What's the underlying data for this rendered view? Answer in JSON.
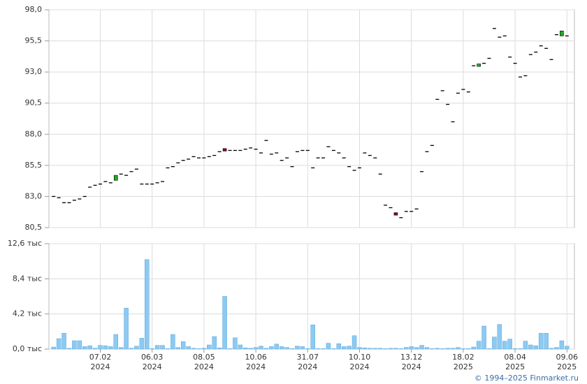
{
  "chart_data": [
    {
      "type": "candlestick",
      "open": [
        83.0,
        82.9,
        82.5,
        82.5,
        82.7,
        82.8,
        83.0,
        83.75,
        83.9,
        84.0,
        84.2,
        84.1,
        84.3,
        84.8,
        84.7,
        85.0,
        85.2,
        84.0,
        84.0,
        84.0,
        84.1,
        84.2,
        85.3,
        85.4,
        85.7,
        85.9,
        86.0,
        86.2,
        86.1,
        86.1,
        86.2,
        86.3,
        86.6,
        86.85,
        86.7,
        86.7,
        86.7,
        86.8,
        86.9,
        86.8,
        86.5,
        87.5,
        86.4,
        86.5,
        85.9,
        86.1,
        85.4,
        86.6,
        86.7,
        86.7,
        85.3,
        86.1,
        86.1,
        87.0,
        86.7,
        86.5,
        86.1,
        85.4,
        85.1,
        85.3,
        86.5,
        86.3,
        86.1,
        84.8,
        82.3,
        82.1,
        81.7,
        81.3,
        81.8,
        81.8,
        82.0,
        85.0,
        86.6,
        87.1,
        90.8,
        91.5,
        90.4,
        89.0,
        91.3,
        91.6,
        91.4,
        93.5,
        93.45,
        93.7,
        94.1,
        96.5,
        95.8,
        95.9,
        94.2,
        93.7,
        92.6,
        92.7,
        94.4,
        94.6,
        95.1,
        94.9,
        94.0,
        96.0,
        95.9,
        95.9
      ],
      "close": [
        83.0,
        82.9,
        82.5,
        82.5,
        82.7,
        82.8,
        83.0,
        83.75,
        83.9,
        84.0,
        84.2,
        84.1,
        84.7,
        84.8,
        84.7,
        85.0,
        85.2,
        84.0,
        84.0,
        84.0,
        84.1,
        84.2,
        85.3,
        85.4,
        85.7,
        85.9,
        86.0,
        86.2,
        86.1,
        86.1,
        86.2,
        86.3,
        86.6,
        86.65,
        86.7,
        86.7,
        86.7,
        86.8,
        86.9,
        86.8,
        86.5,
        87.5,
        86.4,
        86.5,
        85.9,
        86.1,
        85.4,
        86.6,
        86.7,
        86.7,
        85.3,
        86.1,
        86.1,
        87.0,
        86.7,
        86.5,
        86.1,
        85.4,
        85.1,
        85.3,
        86.5,
        86.3,
        86.1,
        84.8,
        82.3,
        82.1,
        81.5,
        81.3,
        81.8,
        81.8,
        82.0,
        85.0,
        86.6,
        87.1,
        90.8,
        91.5,
        90.4,
        89.0,
        91.3,
        91.6,
        91.4,
        93.5,
        93.65,
        93.7,
        94.1,
        96.5,
        95.8,
        95.9,
        94.2,
        93.7,
        92.6,
        92.7,
        94.4,
        94.6,
        95.1,
        94.9,
        94.0,
        96.0,
        96.3,
        95.9
      ],
      "up_color": "#22aa22",
      "down_color": "#880022",
      "flat_color": "#000000",
      "ylim": [
        80.5,
        98.0
      ],
      "yticks": [
        {
          "value": 80.5,
          "label": "80,5"
        },
        {
          "value": 83.0,
          "label": "83,0"
        },
        {
          "value": 85.5,
          "label": "85,5"
        },
        {
          "value": 88.0,
          "label": "88,0"
        },
        {
          "value": 90.5,
          "label": "90,5"
        },
        {
          "value": 93.0,
          "label": "93,0"
        },
        {
          "value": 95.5,
          "label": "95,5"
        },
        {
          "value": 98.0,
          "label": "98,0"
        }
      ],
      "grid": true
    },
    {
      "type": "bar",
      "categories": [
        null,
        null,
        null,
        null,
        null,
        null,
        null,
        null,
        null,
        [
          "07.02",
          "2024"
        ],
        null,
        null,
        null,
        null,
        null,
        null,
        null,
        null,
        null,
        [
          "06.03",
          "2024"
        ],
        null,
        null,
        null,
        null,
        null,
        null,
        null,
        null,
        null,
        [
          "08.05",
          "2024"
        ],
        null,
        null,
        null,
        null,
        null,
        null,
        null,
        null,
        null,
        [
          "10.06",
          "2024"
        ],
        null,
        null,
        null,
        null,
        null,
        null,
        null,
        null,
        null,
        [
          "31.07",
          "2024"
        ],
        null,
        null,
        null,
        null,
        null,
        null,
        null,
        null,
        null,
        [
          "10.10",
          "2024"
        ],
        null,
        null,
        null,
        null,
        null,
        null,
        null,
        null,
        null,
        [
          "13.12",
          "2024"
        ],
        null,
        null,
        null,
        null,
        null,
        null,
        null,
        null,
        null,
        [
          "18.02",
          "2025"
        ],
        null,
        null,
        null,
        null,
        null,
        null,
        null,
        null,
        null,
        [
          "08.04",
          "2025"
        ],
        null,
        null,
        null,
        null,
        null,
        null,
        null,
        null,
        null,
        [
          "09.06",
          "2025"
        ]
      ],
      "values": [
        0.25,
        1.25,
        1.9,
        0.1,
        1.0,
        1.0,
        0.3,
        0.4,
        0.1,
        0.45,
        0.4,
        0.3,
        1.75,
        0.2,
        4.9,
        0.1,
        0.35,
        1.3,
        10.7,
        0.05,
        0.45,
        0.45,
        0.05,
        1.75,
        0.2,
        0.9,
        0.3,
        0.1,
        0.05,
        0.1,
        0.5,
        1.5,
        0.15,
        6.3,
        0.05,
        1.35,
        0.5,
        0.15,
        0.1,
        0.2,
        0.35,
        0.1,
        0.3,
        0.6,
        0.3,
        0.2,
        0.05,
        0.35,
        0.3,
        0.05,
        2.9,
        0.05,
        0.05,
        0.7,
        0.05,
        0.65,
        0.3,
        0.35,
        1.6,
        0.2,
        0.15,
        0.1,
        0.1,
        0.1,
        0.05,
        0.1,
        0.1,
        0.05,
        0.2,
        0.3,
        0.2,
        0.45,
        0.2,
        0.05,
        0.1,
        0.05,
        0.1,
        0.1,
        0.2,
        0.05,
        0.05,
        0.25,
        0.95,
        2.75,
        0.05,
        1.45,
        2.95,
        0.95,
        1.2,
        0.05,
        0.05,
        0.95,
        0.5,
        0.4,
        1.9,
        1.9,
        0.1,
        0.2,
        1.0,
        0.35
      ],
      "color": "#8ccaf2",
      "ylim": [
        0,
        12.6
      ],
      "yticks": [
        {
          "value": 0,
          "label": "0,0 тыс"
        },
        {
          "value": 4.2,
          "label": "4,2 тыс"
        },
        {
          "value": 8.4,
          "label": "8,4 тыс"
        },
        {
          "value": 12.6,
          "label": "12,6 тыс"
        }
      ],
      "grid": true
    }
  ],
  "credit": "© 1994–2025 Finmarket.ru"
}
